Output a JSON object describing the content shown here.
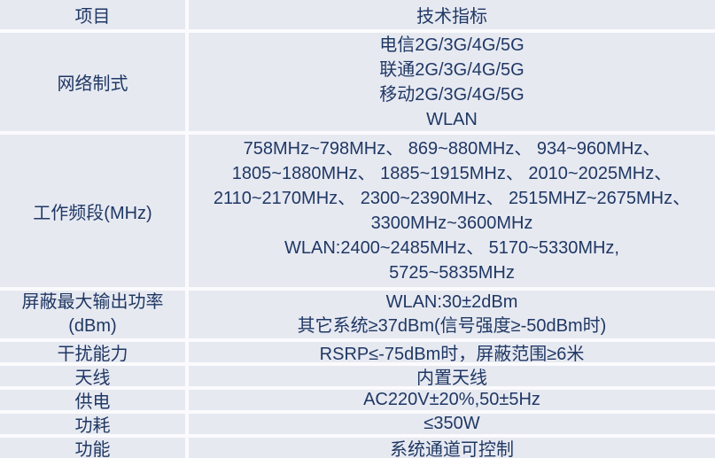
{
  "table": {
    "header": {
      "item": "项目",
      "spec": "技术指标"
    },
    "rows": [
      {
        "item": "网络制式",
        "lines": [
          "电信2G/3G/4G/5G",
          "联通2G/3G/4G/5G",
          "移动2G/3G/4G/5G",
          "WLAN"
        ]
      },
      {
        "item": "工作频段(MHz)",
        "lines": [
          "758MHz~798MHz、 869~880MHz、 934~960MHz、",
          "1805~1880MHz、 1885~1915MHz、 2010~2025MHz、",
          "2110~2170MHz、 2300~2390MHz、 2515MHZ~2675MHz、",
          "3300MHz~3600MHz",
          "WLAN:2400~2485MHz、 5170~5330MHz,",
          "5725~5835MHz"
        ]
      },
      {
        "item_lines": [
          "屏蔽最大输出功率",
          "(dBm)"
        ],
        "lines": [
          "WLAN:30±2dBm",
          "其它系统≥37dBm(信号强度≥-50dBm时)"
        ]
      },
      {
        "item": "干扰能力",
        "lines": [
          "RSRP≤-75dBm时，屏蔽范围≥6米"
        ]
      },
      {
        "item": "天线",
        "lines": [
          "内置天线"
        ]
      },
      {
        "item": "供电",
        "lines": [
          "AC220V±20%,50±5Hz"
        ]
      },
      {
        "item": "功耗",
        "lines": [
          "≤350W"
        ]
      },
      {
        "item": "功能",
        "lines": [
          "系统通道可控制"
        ]
      }
    ],
    "colors": {
      "cell_background": "#e7e9f1",
      "divider": "#fbfbfd",
      "text": "#1f3864"
    }
  }
}
